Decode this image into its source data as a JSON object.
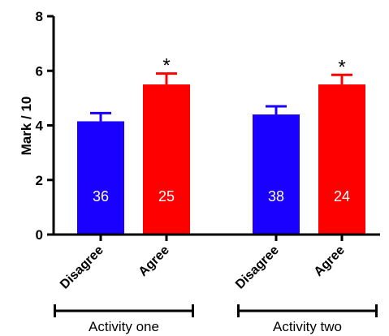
{
  "chart_data": {
    "type": "bar",
    "ylabel": "Mark / 10",
    "ylim": [
      0,
      8
    ],
    "yticks": [
      "0",
      "2",
      "4",
      "6",
      "8"
    ],
    "groups": [
      {
        "label": "Activity one",
        "bars": [
          {
            "category": "Disagree",
            "value": 4.15,
            "error": 0.3,
            "n": "36",
            "color": "#1a00ff",
            "significance": ""
          },
          {
            "category": "Agree",
            "value": 5.5,
            "error": 0.4,
            "n": "25",
            "color": "#ff0000",
            "significance": "*"
          }
        ]
      },
      {
        "label": "Activity two",
        "bars": [
          {
            "category": "Disagree",
            "value": 4.4,
            "error": 0.3,
            "n": "38",
            "color": "#1a00ff",
            "significance": ""
          },
          {
            "category": "Agree",
            "value": 5.5,
            "error": 0.35,
            "n": "24",
            "color": "#ff0000",
            "significance": "*"
          }
        ]
      }
    ],
    "grid": false,
    "legend": "none"
  }
}
